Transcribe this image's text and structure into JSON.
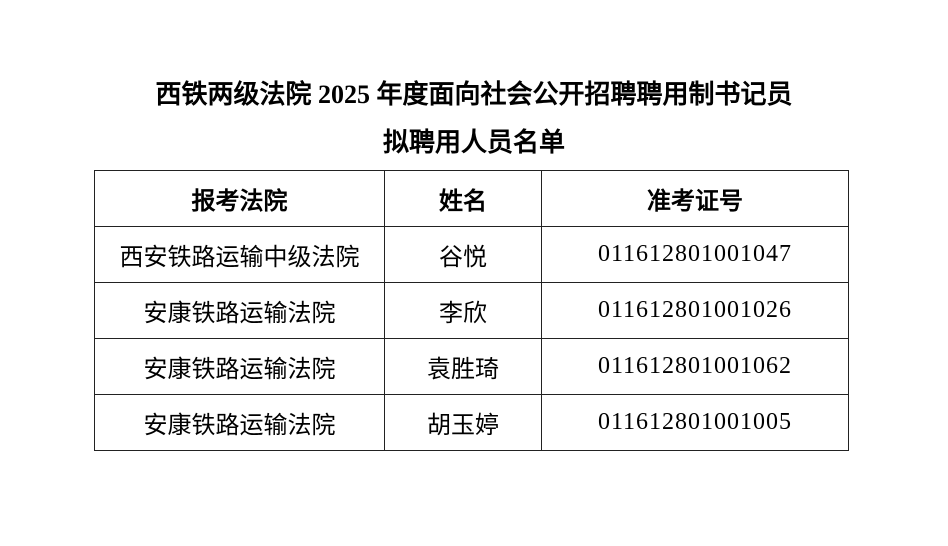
{
  "title": {
    "line1": "西铁两级法院 2025 年度面向社会公开招聘聘用制书记员",
    "line2": "拟聘用人员名单"
  },
  "table": {
    "headers": [
      "报考法院",
      "姓名",
      "准考证号"
    ],
    "rows": [
      {
        "court": "西安铁路运输中级法院",
        "name": "谷悦",
        "ticket": "011612801001047"
      },
      {
        "court": "安康铁路运输法院",
        "name": "李欣",
        "ticket": "011612801001026"
      },
      {
        "court": "安康铁路运输法院",
        "name": "袁胜琦",
        "ticket": "011612801001062"
      },
      {
        "court": "安康铁路运输法院",
        "name": "胡玉婷",
        "ticket": "011612801001005"
      }
    ]
  }
}
